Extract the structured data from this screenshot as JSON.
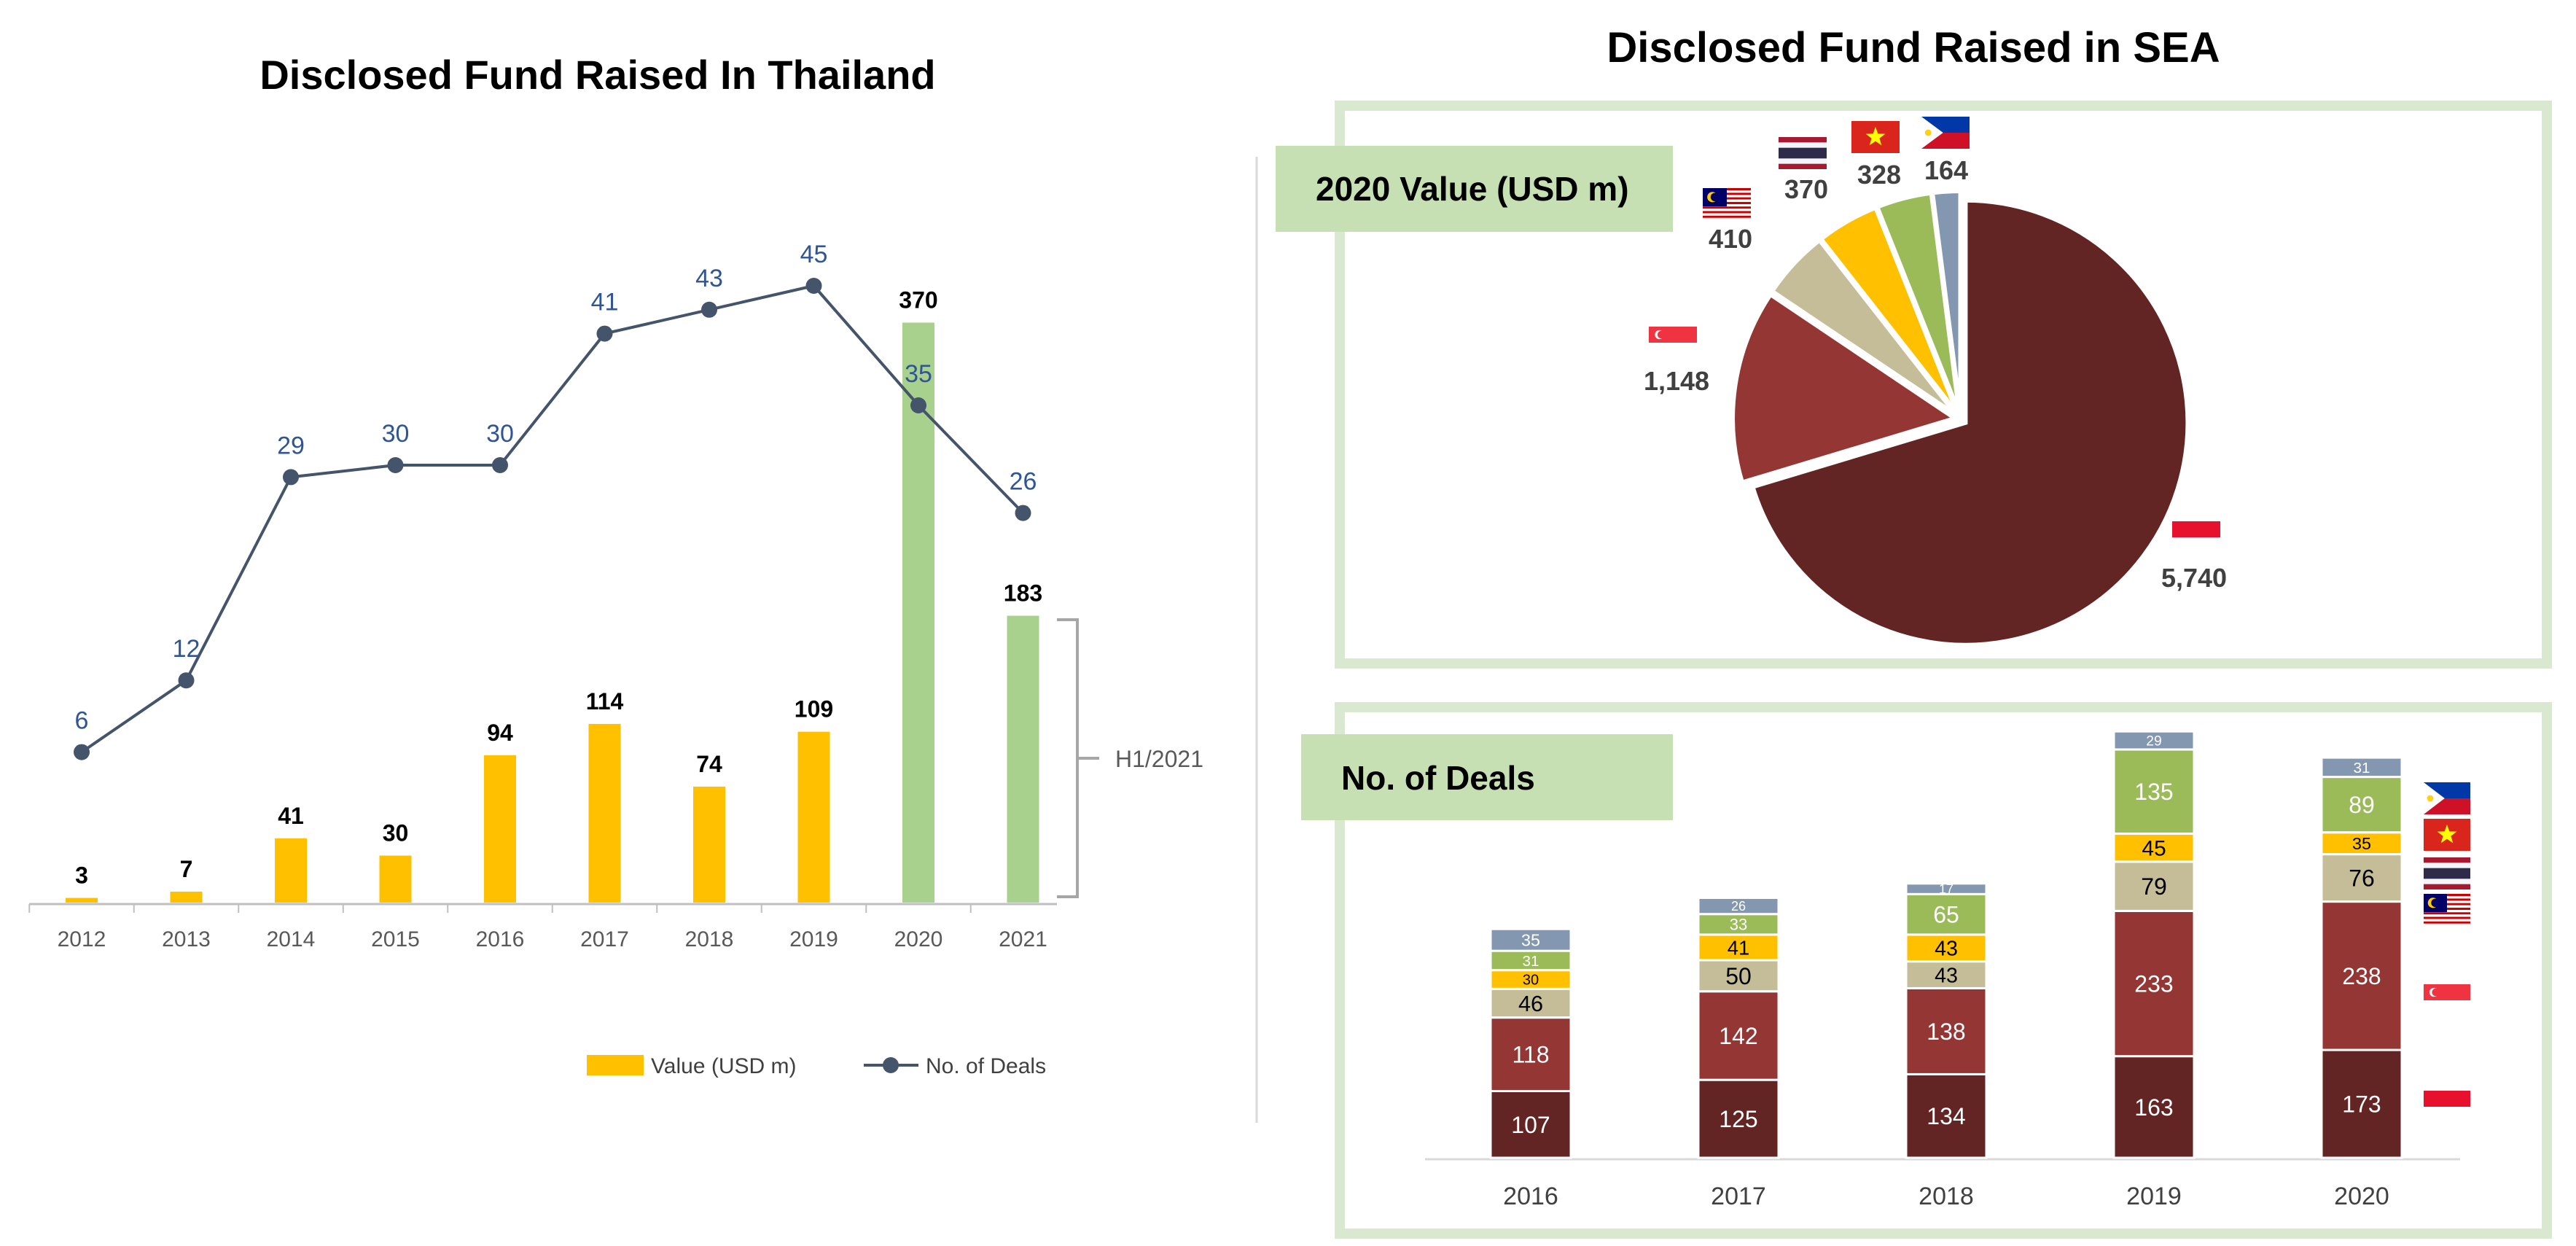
{
  "chart_data": [
    {
      "type": "bar+line",
      "title": "Disclosed Fund Raised In Thailand",
      "categories": [
        "2012",
        "2013",
        "2014",
        "2015",
        "2016",
        "2017",
        "2018",
        "2019",
        "2020",
        "2021"
      ],
      "series": [
        {
          "name": "Value (USD m)",
          "type": "bar",
          "values": [
            3,
            7,
            41,
            30,
            94,
            114,
            74,
            109,
            370,
            183
          ],
          "colors": [
            "#FFC000",
            "#FFC000",
            "#FFC000",
            "#FFC000",
            "#FFC000",
            "#FFC000",
            "#FFC000",
            "#FFC000",
            "#A9D18E",
            "#A9D18E"
          ]
        },
        {
          "name": "No. of Deals",
          "type": "line",
          "color": "#44546A",
          "values": [
            6,
            12,
            29,
            30,
            30,
            41,
            43,
            45,
            35,
            26
          ]
        }
      ],
      "annotation": "H1/2021",
      "legend_position": "bottom",
      "grid": false
    },
    {
      "type": "pie",
      "title": "Disclosed Fund Raised in SEA",
      "subtitle": "2020 Value (USD m)",
      "slices": [
        {
          "country": "Indonesia",
          "value": 5740,
          "label": "5,740",
          "color": "#632523"
        },
        {
          "country": "Singapore",
          "value": 1148,
          "label": "1,148",
          "color": "#943634"
        },
        {
          "country": "Malaysia",
          "value": 410,
          "label": "410",
          "color": "#C4BD97"
        },
        {
          "country": "Thailand",
          "value": 370,
          "label": "370",
          "color": "#FFC000"
        },
        {
          "country": "Vietnam",
          "value": 328,
          "label": "328",
          "color": "#9BBB59"
        },
        {
          "country": "Philippines",
          "value": 164,
          "label": "164",
          "color": "#8497B0"
        }
      ]
    },
    {
      "type": "stacked-bar",
      "title": "No. of Deals",
      "categories": [
        "2016",
        "2017",
        "2018",
        "2019",
        "2020"
      ],
      "series": [
        {
          "country": "Indonesia",
          "color": "#632523",
          "values": [
            107,
            125,
            134,
            163,
            173
          ]
        },
        {
          "country": "Singapore",
          "color": "#943634",
          "values": [
            118,
            142,
            138,
            233,
            238
          ]
        },
        {
          "country": "Malaysia",
          "color": "#C4BD97",
          "values": [
            46,
            50,
            43,
            79,
            76
          ]
        },
        {
          "country": "Thailand",
          "color": "#FFC000",
          "values": [
            30,
            41,
            43,
            45,
            35
          ]
        },
        {
          "country": "Vietnam",
          "color": "#9BBB59",
          "values": [
            31,
            33,
            65,
            135,
            89
          ]
        },
        {
          "country": "Philippines",
          "color": "#8497B0",
          "values": [
            35,
            26,
            17,
            29,
            31
          ]
        }
      ]
    }
  ]
}
